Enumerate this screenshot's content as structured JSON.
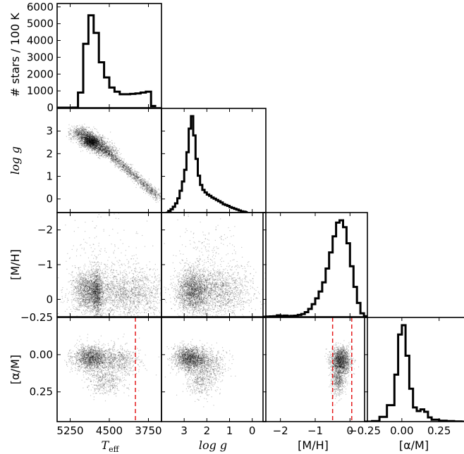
{
  "chart_data": {
    "type": "corner-plot",
    "variables": [
      {
        "key": "teff",
        "label": "T_eff",
        "label_main": "T",
        "label_sub": "eff",
        "range": [
          5500,
          3500
        ],
        "ticks": [
          5250,
          4500,
          3750
        ],
        "tick_labels": [
          "5250",
          "4500",
          "3750"
        ]
      },
      {
        "key": "logg",
        "label": "log g",
        "range": [
          4.0,
          -0.6
        ],
        "ticks": [
          3,
          2,
          1,
          0
        ],
        "tick_labels": [
          "3",
          "2",
          "1",
          "0"
        ]
      },
      {
        "key": "mh",
        "label": "[M/H]",
        "range": [
          -2.5,
          0.5
        ],
        "ticks": [
          -2,
          -1,
          0
        ],
        "tick_labels": [
          "−2",
          "−1",
          "0"
        ]
      },
      {
        "key": "am",
        "label": "[α/M]",
        "range": [
          -0.25,
          0.45
        ],
        "ticks": [
          -0.25,
          0.0,
          0.25
        ],
        "tick_labels": [
          "−0.25",
          "0.00",
          "0.25"
        ]
      }
    ],
    "hist_ylabel": "# stars / 100 K",
    "hist_yticks": [
      0,
      1000,
      2000,
      3000,
      4000,
      5000,
      6000
    ],
    "hist_ylim": [
      0,
      6200
    ],
    "left_ticks": {
      "logg": {
        "ticks": [
          0,
          1,
          2,
          3
        ],
        "labels": [
          "0",
          "1",
          "2",
          "3"
        ]
      },
      "mh": {
        "ticks": [
          0,
          -1,
          -2
        ],
        "labels": [
          "0",
          "−1",
          "−2"
        ]
      },
      "am": {
        "ticks": [
          0.25,
          0.0,
          -0.25
        ],
        "labels": [
          "0.25",
          "0.00",
          "−0.25"
        ]
      }
    },
    "histograms": {
      "teff": {
        "edges": [
          5500,
          5400,
          5300,
          5200,
          5100,
          5000,
          4900,
          4800,
          4700,
          4600,
          4500,
          4400,
          4300,
          4200,
          4100,
          4000,
          3900,
          3800,
          3700,
          3600
        ],
        "counts": [
          0,
          0,
          0,
          5,
          900,
          3800,
          5500,
          4450,
          2700,
          1800,
          1200,
          950,
          800,
          800,
          820,
          850,
          900,
          950,
          100
        ]
      },
      "logg": {
        "edges": [
          3.8,
          3.7,
          3.6,
          3.5,
          3.4,
          3.3,
          3.2,
          3.1,
          3.0,
          2.9,
          2.8,
          2.7,
          2.6,
          2.5,
          2.4,
          2.3,
          2.2,
          2.1,
          2.0,
          1.9,
          1.8,
          1.7,
          1.6,
          1.5,
          1.4,
          1.3,
          1.2,
          1.1,
          1.0,
          0.9,
          0.8,
          0.7,
          0.6,
          0.5,
          0.4,
          0.3,
          0.2
        ],
        "counts": [
          0,
          20,
          40,
          70,
          110,
          170,
          260,
          370,
          510,
          720,
          1000,
          1150,
          920,
          640,
          440,
          330,
          270,
          240,
          215,
          200,
          180,
          165,
          150,
          135,
          120,
          100,
          90,
          80,
          65,
          55,
          45,
          35,
          25,
          15,
          10,
          5
        ]
      },
      "mh": {
        "edges": [
          -2.5,
          -2.4,
          -2.3,
          -2.2,
          -2.1,
          -2.0,
          -1.9,
          -1.8,
          -1.7,
          -1.6,
          -1.5,
          -1.4,
          -1.3,
          -1.2,
          -1.1,
          -1.0,
          -0.9,
          -0.8,
          -0.7,
          -0.6,
          -0.5,
          -0.4,
          -0.3,
          -0.2,
          -0.1,
          0.0,
          0.1,
          0.2,
          0.3,
          0.4,
          0.5
        ],
        "counts": [
          0,
          5,
          15,
          25,
          60,
          40,
          50,
          30,
          40,
          45,
          80,
          120,
          200,
          340,
          550,
          800,
          1100,
          1500,
          2100,
          2800,
          3500,
          4100,
          4200,
          3900,
          3200,
          2200,
          1300,
          600,
          150,
          20
        ]
      },
      "am": {
        "edges": [
          -0.25,
          -0.2,
          -0.15,
          -0.1,
          -0.05,
          -0.025,
          0.0,
          0.025,
          0.05,
          0.075,
          0.1,
          0.125,
          0.15,
          0.175,
          0.2,
          0.25,
          0.3,
          0.35,
          0.4,
          0.45
        ],
        "counts": [
          0,
          20,
          200,
          700,
          2000,
          3700,
          4100,
          2800,
          1400,
          600,
          450,
          520,
          420,
          180,
          80,
          40,
          20,
          10,
          0
        ]
      }
    },
    "clusters": {
      "teff_logg": [
        {
          "x": [
            5100,
            4550
          ],
          "y": [
            3.05,
            2.05
          ],
          "n": 2200,
          "sx": 110,
          "sy": 0.12,
          "sigma": 0.35
        },
        {
          "x": [
            4900,
            4800
          ],
          "y": [
            2.6,
            2.5
          ],
          "n": 900,
          "sx": 90,
          "sy": 0.12,
          "sigma": 0.5
        },
        {
          "x": [
            4550,
            3560
          ],
          "y": [
            2.1,
            0.1
          ],
          "n": 1300,
          "sx": 45,
          "sy": 0.1,
          "sigma": 0.6
        }
      ],
      "teff_mh": [
        {
          "cx": 4900,
          "cy": -0.25,
          "n": 1600,
          "sx": 160,
          "sy": 0.3
        },
        {
          "cx": 4750,
          "cy": -0.2,
          "n": 700,
          "sx": 50,
          "sy": 0.35
        },
        {
          "cx": 4200,
          "cy": -0.2,
          "n": 1800,
          "sx": 400,
          "sy": 0.35
        },
        {
          "cx": 4700,
          "cy": -1.4,
          "n": 150,
          "sx": 450,
          "sy": 0.6
        }
      ],
      "teff_am": [
        {
          "cx": 4850,
          "cy": 0.02,
          "n": 1700,
          "sx": 170,
          "sy": 0.04
        },
        {
          "cx": 4600,
          "cy": 0.17,
          "n": 500,
          "sx": 180,
          "sy": 0.05
        },
        {
          "cx": 4300,
          "cy": 0.03,
          "n": 600,
          "sx": 200,
          "sy": 0.05
        }
      ],
      "logg_mh": [
        {
          "cx": 2.65,
          "cy": -0.25,
          "n": 1800,
          "sx": 0.35,
          "sy": 0.3
        },
        {
          "cx": 1.6,
          "cy": -0.25,
          "n": 1600,
          "sx": 0.8,
          "sy": 0.35
        },
        {
          "cx": 2.0,
          "cy": -1.3,
          "n": 200,
          "sx": 0.8,
          "sy": 0.6
        }
      ],
      "logg_am": [
        {
          "cx": 2.75,
          "cy": 0.02,
          "n": 1700,
          "sx": 0.35,
          "sy": 0.04
        },
        {
          "cx": 2.2,
          "cy": 0.16,
          "n": 500,
          "sx": 0.35,
          "sy": 0.06
        },
        {
          "cx": 2.0,
          "cy": 0.05,
          "n": 500,
          "sx": 0.45,
          "sy": 0.05
        }
      ],
      "mh_am": [
        {
          "cx": -0.28,
          "cy": 0.04,
          "n": 1700,
          "sx": 0.14,
          "sy": 0.045
        },
        {
          "cx": -0.35,
          "cy": 0.17,
          "n": 500,
          "sx": 0.1,
          "sy": 0.05
        }
      ]
    },
    "cut_lines": {
      "teff": [
        4000
      ],
      "mh": [
        -0.5,
        0.05
      ]
    },
    "cut_line_color": "#e41a1c",
    "point_color": "#000000",
    "line_color": "#000000"
  }
}
